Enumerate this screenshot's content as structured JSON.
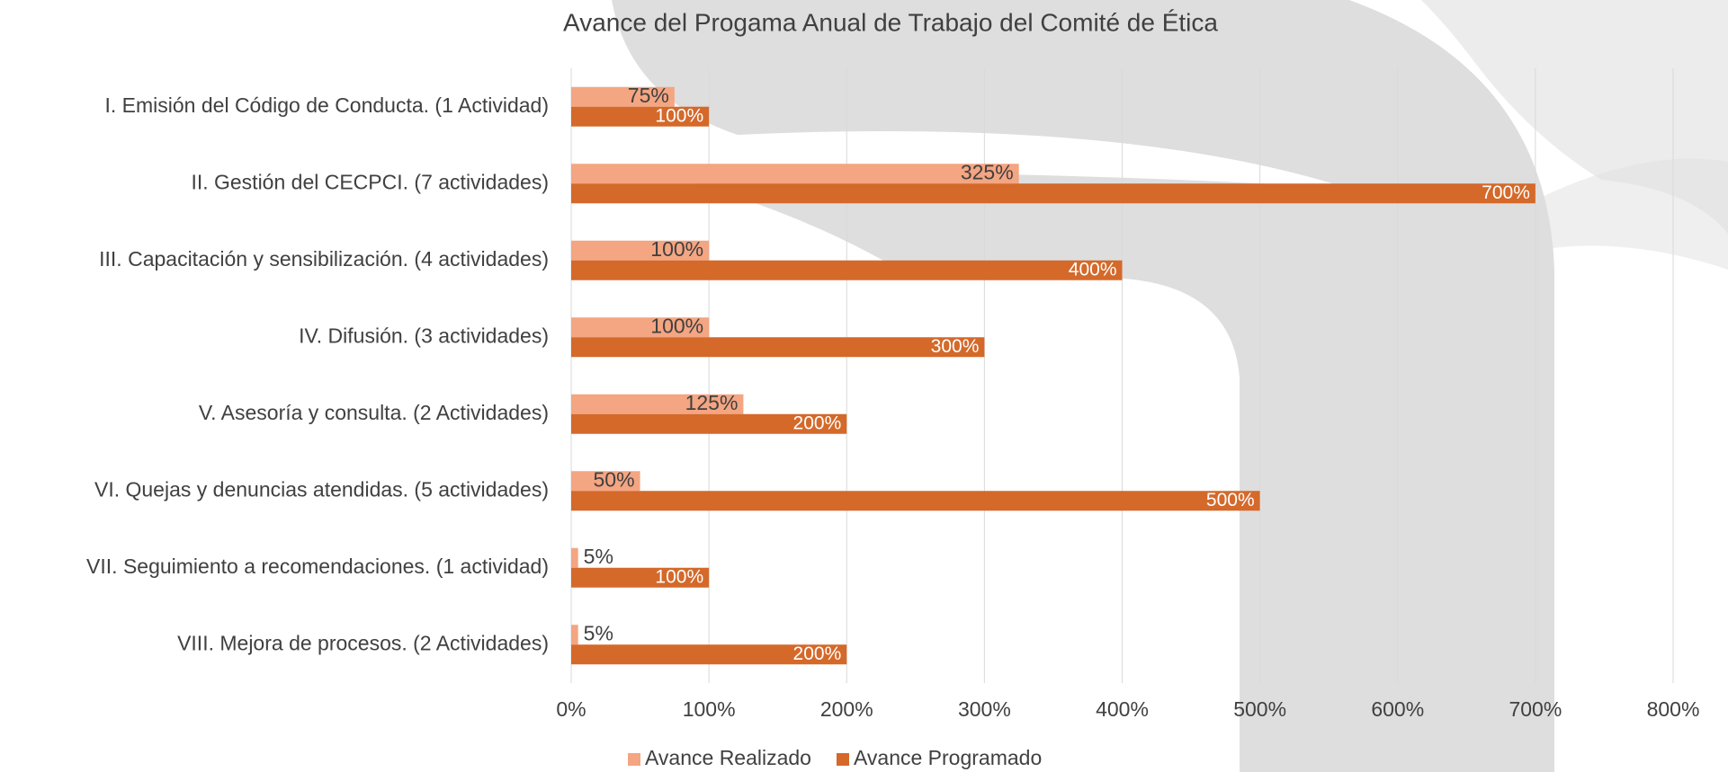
{
  "chart_data": {
    "type": "hbar",
    "title": "Avance del Progama Anual de Trabajo del Comité de Ética",
    "categories": [
      "I. Emisión del Código de Conducta. (1 Actividad)",
      "II. Gestión del CECPCI. (7 actividades)",
      "III. Capacitación y sensibilización. (4 actividades)",
      "IV. Difusión. (3 actividades)",
      "V. Asesoría y consulta. (2 Actividades)",
      "VI. Quejas y denuncias atendidas. (5 actividades)",
      "VII. Seguimiento a recomendaciones. (1 actividad)",
      "VIII. Mejora de procesos. (2 Actividades)"
    ],
    "series": [
      {
        "name": "Avance Realizado",
        "color": "#f4a582",
        "values": [
          75,
          325,
          100,
          100,
          125,
          50,
          5,
          5
        ],
        "value_labels": [
          "75%",
          "325%",
          "100%",
          "100%",
          "125%",
          "50%",
          "5%",
          "5%"
        ]
      },
      {
        "name": "Avance Programado",
        "color": "#d4692a",
        "values": [
          100,
          700,
          400,
          300,
          200,
          500,
          100,
          200
        ],
        "value_labels": [
          "100%",
          "700%",
          "400%",
          "300%",
          "200%",
          "500%",
          "100%",
          "200%"
        ]
      }
    ],
    "xlim": [
      0,
      800
    ],
    "xticks": [
      {
        "value": 0,
        "label": "0%"
      },
      {
        "value": 100,
        "label": "100%"
      },
      {
        "value": 200,
        "label": "200%"
      },
      {
        "value": 300,
        "label": "300%"
      },
      {
        "value": 400,
        "label": "400%"
      },
      {
        "value": 500,
        "label": "500%"
      },
      {
        "value": 600,
        "label": "600%"
      },
      {
        "value": 700,
        "label": "700%"
      },
      {
        "value": 800,
        "label": "800%"
      }
    ],
    "grid": true,
    "legend": "bottom"
  }
}
